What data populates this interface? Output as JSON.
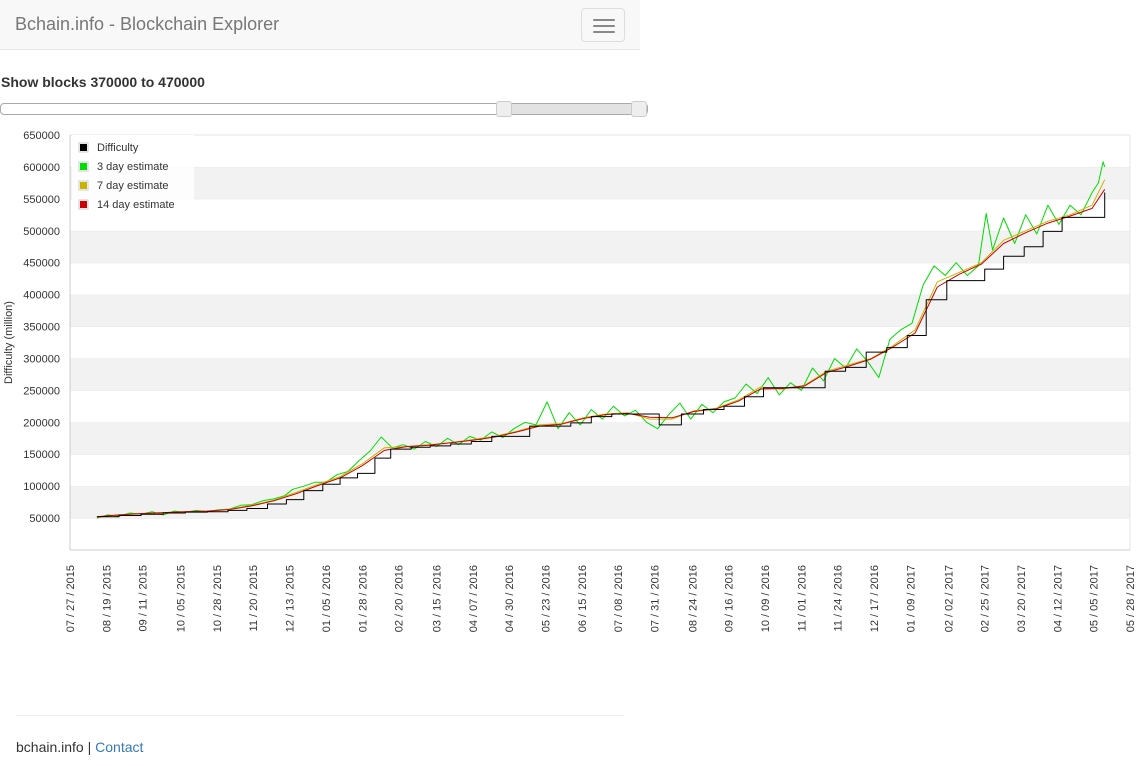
{
  "navbar": {
    "brand": "Bchain.info - Blockchain Explorer",
    "menu_icon": "hamburger-menu-icon"
  },
  "range_title": "Show blocks 370000 to 470000",
  "slider": {
    "min": 0,
    "max": 470000,
    "low": 370000,
    "high": 470000
  },
  "footer": {
    "site": "bchain.info",
    "separator": "|",
    "contact": "Contact"
  },
  "chart_data": {
    "type": "line",
    "title": "",
    "xlabel": "",
    "ylabel": "Difficulty (million)",
    "ylim": [
      0,
      650000
    ],
    "xlim": [
      "07/27/2015",
      "05/28/2017"
    ],
    "grid": "horizontal alternating bands",
    "legend_position": "top-left",
    "y_ticks": [
      50000,
      100000,
      150000,
      200000,
      250000,
      300000,
      350000,
      400000,
      450000,
      500000,
      550000,
      600000,
      650000
    ],
    "x_ticks": [
      "07 / 27 / 2015",
      "08 / 19 / 2015",
      "09 / 11 / 2015",
      "10 / 05 / 2015",
      "10 / 28 / 2015",
      "11 / 20 / 2015",
      "12 / 13 / 2015",
      "01 / 05 / 2016",
      "01 / 28 / 2016",
      "02 / 20 / 2016",
      "03 / 15 / 2016",
      "04 / 07 / 2016",
      "04 / 30 / 2016",
      "05 / 23 / 2016",
      "06 / 15 / 2016",
      "07 / 08 / 2016",
      "07 / 31 / 2016",
      "08 / 24 / 2016",
      "09 / 16 / 2016",
      "10 / 09 / 2016",
      "11 / 01 / 2016",
      "11 / 24 / 2016",
      "12 / 17 / 2016",
      "01 / 09 / 2017",
      "02 / 02 / 2017",
      "02 / 25 / 2017",
      "03 / 20 / 2017",
      "04 / 12 / 2017",
      "05 / 05 / 2017",
      "05 / 28 / 2017"
    ],
    "series": [
      {
        "name": "Difficulty",
        "color": "#000000",
        "step": true,
        "points": [
          [
            "08/13/2015",
            52000
          ],
          [
            "08/27/2015",
            54000
          ],
          [
            "09/10/2015",
            56000
          ],
          [
            "09/24/2015",
            58000
          ],
          [
            "10/08/2015",
            59300
          ],
          [
            "10/22/2015",
            60000
          ],
          [
            "11/04/2015",
            62000
          ],
          [
            "11/16/2015",
            65000
          ],
          [
            "11/29/2015",
            72000
          ],
          [
            "12/11/2015",
            79000
          ],
          [
            "12/22/2015",
            93000
          ],
          [
            "01/03/2016",
            103000
          ],
          [
            "01/14/2016",
            113000
          ],
          [
            "01/25/2016",
            120000
          ],
          [
            "02/05/2016",
            144000
          ],
          [
            "02/15/2016",
            158000
          ],
          [
            "02/28/2016",
            161000
          ],
          [
            "03/11/2016",
            163000
          ],
          [
            "03/24/2016",
            166000
          ],
          [
            "04/06/2016",
            170000
          ],
          [
            "04/19/2016",
            178000
          ],
          [
            "05/01/2016",
            178000
          ],
          [
            "05/13/2016",
            194000
          ],
          [
            "05/26/2016",
            194000
          ],
          [
            "06/08/2016",
            199000
          ],
          [
            "06/21/2016",
            209000
          ],
          [
            "07/04/2016",
            213000
          ],
          [
            "07/20/2016",
            213000
          ],
          [
            "08/03/2016",
            196000
          ],
          [
            "08/17/2016",
            213000
          ],
          [
            "08/31/2016",
            220000
          ],
          [
            "09/13/2016",
            225000
          ],
          [
            "09/26/2016",
            240000
          ],
          [
            "10/08/2016",
            254000
          ],
          [
            "10/21/2016",
            254000
          ],
          [
            "11/03/2016",
            254000
          ],
          [
            "11/16/2016",
            280000
          ],
          [
            "11/29/2016",
            286000
          ],
          [
            "12/12/2016",
            310000
          ],
          [
            "12/25/2016",
            317000
          ],
          [
            "01/07/2017",
            336000
          ],
          [
            "01/19/2017",
            392000
          ],
          [
            "02/01/2017",
            422000
          ],
          [
            "02/13/2017",
            422000
          ],
          [
            "02/25/2017",
            440000
          ],
          [
            "03/09/2017",
            460000
          ],
          [
            "03/22/2017",
            475000
          ],
          [
            "04/03/2017",
            499000
          ],
          [
            "04/15/2017",
            521000
          ],
          [
            "04/28/2017",
            521000
          ],
          [
            "05/09/2017",
            521000
          ],
          [
            "05/12/2017",
            560000
          ]
        ]
      },
      {
        "name": "3 day estimate",
        "color": "#00dd00",
        "points": [
          [
            "08/13/2015",
            50000
          ],
          [
            "08/20/2015",
            55000
          ],
          [
            "08/27/2015",
            53000
          ],
          [
            "09/03/2015",
            58000
          ],
          [
            "09/10/2015",
            56000
          ],
          [
            "09/17/2015",
            60000
          ],
          [
            "09/24/2015",
            55000
          ],
          [
            "10/01/2015",
            61000
          ],
          [
            "10/08/2015",
            59000
          ],
          [
            "10/15/2015",
            62000
          ],
          [
            "10/22/2015",
            60000
          ],
          [
            "10/29/2015",
            63000
          ],
          [
            "11/05/2015",
            64000
          ],
          [
            "11/12/2015",
            70000
          ],
          [
            "11/19/2015",
            71000
          ],
          [
            "11/26/2015",
            77000
          ],
          [
            "12/03/2015",
            80000
          ],
          [
            "12/10/2015",
            85000
          ],
          [
            "12/15/2015",
            95000
          ],
          [
            "12/22/2015",
            100000
          ],
          [
            "12/29/2015",
            106000
          ],
          [
            "01/05/2016",
            106000
          ],
          [
            "01/12/2016",
            118000
          ],
          [
            "01/19/2016",
            123000
          ],
          [
            "01/26/2016",
            140000
          ],
          [
            "02/02/2016",
            155000
          ],
          [
            "02/09/2016",
            177000
          ],
          [
            "02/16/2016",
            160000
          ],
          [
            "02/23/2016",
            165000
          ],
          [
            "03/01/2016",
            158000
          ],
          [
            "03/08/2016",
            170000
          ],
          [
            "03/15/2016",
            162000
          ],
          [
            "03/22/2016",
            175000
          ],
          [
            "03/29/2016",
            165000
          ],
          [
            "04/05/2016",
            178000
          ],
          [
            "04/12/2016",
            172000
          ],
          [
            "04/19/2016",
            185000
          ],
          [
            "04/26/2016",
            176000
          ],
          [
            "05/03/2016",
            190000
          ],
          [
            "05/10/2016",
            200000
          ],
          [
            "05/17/2016",
            196000
          ],
          [
            "05/24/2016",
            232000
          ],
          [
            "05/31/2016",
            190000
          ],
          [
            "06/07/2016",
            215000
          ],
          [
            "06/14/2016",
            196000
          ],
          [
            "06/21/2016",
            220000
          ],
          [
            "06/28/2016",
            205000
          ],
          [
            "07/05/2016",
            225000
          ],
          [
            "07/12/2016",
            210000
          ],
          [
            "07/19/2016",
            219000
          ],
          [
            "07/26/2016",
            200000
          ],
          [
            "08/02/2016",
            190000
          ],
          [
            "08/09/2016",
            212000
          ],
          [
            "08/16/2016",
            230000
          ],
          [
            "08/23/2016",
            205000
          ],
          [
            "08/30/2016",
            228000
          ],
          [
            "09/06/2016",
            215000
          ],
          [
            "09/13/2016",
            232000
          ],
          [
            "09/20/2016",
            238000
          ],
          [
            "09/27/2016",
            260000
          ],
          [
            "10/04/2016",
            245000
          ],
          [
            "10/11/2016",
            270000
          ],
          [
            "10/18/2016",
            243000
          ],
          [
            "10/25/2016",
            262000
          ],
          [
            "11/01/2016",
            250000
          ],
          [
            "11/08/2016",
            285000
          ],
          [
            "11/15/2016",
            265000
          ],
          [
            "11/22/2016",
            300000
          ],
          [
            "11/29/2016",
            285000
          ],
          [
            "12/06/2016",
            315000
          ],
          [
            "12/13/2016",
            295000
          ],
          [
            "12/20/2016",
            270000
          ],
          [
            "12/27/2016",
            330000
          ],
          [
            "01/03/2017",
            345000
          ],
          [
            "01/10/2017",
            355000
          ],
          [
            "01/17/2017",
            415000
          ],
          [
            "01/24/2017",
            445000
          ],
          [
            "01/31/2017",
            430000
          ],
          [
            "02/07/2017",
            450000
          ],
          [
            "02/14/2017",
            430000
          ],
          [
            "02/21/2017",
            445000
          ],
          [
            "02/26/2017",
            527000
          ],
          [
            "03/02/2017",
            470000
          ],
          [
            "03/09/2017",
            520000
          ],
          [
            "03/16/2017",
            480000
          ],
          [
            "03/23/2017",
            525000
          ],
          [
            "03/30/2017",
            495000
          ],
          [
            "04/06/2017",
            540000
          ],
          [
            "04/13/2017",
            510000
          ],
          [
            "04/20/2017",
            540000
          ],
          [
            "04/27/2017",
            525000
          ],
          [
            "05/04/2017",
            560000
          ],
          [
            "05/08/2017",
            575000
          ],
          [
            "05/11/2017",
            608000
          ],
          [
            "05/12/2017",
            600000
          ]
        ]
      },
      {
        "name": "7 day estimate",
        "color": "#c8b400",
        "points": [
          [
            "08/13/2015",
            51000
          ],
          [
            "08/27/2015",
            55000
          ],
          [
            "09/10/2015",
            57000
          ],
          [
            "09/24/2015",
            58000
          ],
          [
            "10/08/2015",
            60000
          ],
          [
            "10/22/2015",
            61000
          ],
          [
            "11/05/2015",
            64000
          ],
          [
            "11/19/2015",
            70000
          ],
          [
            "12/03/2015",
            78000
          ],
          [
            "12/17/2015",
            90000
          ],
          [
            "12/31/2015",
            103000
          ],
          [
            "01/14/2016",
            115000
          ],
          [
            "01/28/2016",
            135000
          ],
          [
            "02/11/2016",
            160000
          ],
          [
            "02/25/2016",
            162000
          ],
          [
            "03/10/2016",
            165000
          ],
          [
            "03/24/2016",
            168000
          ],
          [
            "04/07/2016",
            173000
          ],
          [
            "04/21/2016",
            178000
          ],
          [
            "05/05/2016",
            186000
          ],
          [
            "05/19/2016",
            196000
          ],
          [
            "06/02/2016",
            198000
          ],
          [
            "06/16/2016",
            207000
          ],
          [
            "06/30/2016",
            213000
          ],
          [
            "07/14/2016",
            215000
          ],
          [
            "07/28/2016",
            205000
          ],
          [
            "08/11/2016",
            205000
          ],
          [
            "08/25/2016",
            218000
          ],
          [
            "09/08/2016",
            222000
          ],
          [
            "09/22/2016",
            235000
          ],
          [
            "10/06/2016",
            255000
          ],
          [
            "10/20/2016",
            252000
          ],
          [
            "11/03/2016",
            258000
          ],
          [
            "11/17/2016",
            280000
          ],
          [
            "12/01/2016",
            290000
          ],
          [
            "12/15/2016",
            300000
          ],
          [
            "12/29/2016",
            320000
          ],
          [
            "01/12/2017",
            345000
          ],
          [
            "01/26/2017",
            420000
          ],
          [
            "02/09/2017",
            435000
          ],
          [
            "02/23/2017",
            450000
          ],
          [
            "03/09/2017",
            485000
          ],
          [
            "03/23/2017",
            500000
          ],
          [
            "04/06/2017",
            515000
          ],
          [
            "04/20/2017",
            525000
          ],
          [
            "05/04/2017",
            540000
          ],
          [
            "05/12/2017",
            580000
          ]
        ]
      },
      {
        "name": "14 day estimate",
        "color": "#cc0000",
        "points": [
          [
            "08/13/2015",
            52000
          ],
          [
            "08/27/2015",
            55000
          ],
          [
            "09/10/2015",
            57000
          ],
          [
            "09/24/2015",
            58500
          ],
          [
            "10/08/2015",
            60000
          ],
          [
            "10/22/2015",
            61000
          ],
          [
            "11/05/2015",
            63500
          ],
          [
            "11/19/2015",
            69000
          ],
          [
            "12/03/2015",
            77000
          ],
          [
            "12/17/2015",
            88000
          ],
          [
            "12/31/2015",
            101000
          ],
          [
            "01/14/2016",
            113000
          ],
          [
            "01/28/2016",
            132000
          ],
          [
            "02/11/2016",
            156000
          ],
          [
            "02/25/2016",
            162000
          ],
          [
            "03/10/2016",
            164000
          ],
          [
            "03/24/2016",
            168000
          ],
          [
            "04/07/2016",
            172000
          ],
          [
            "04/21/2016",
            177000
          ],
          [
            "05/05/2016",
            185000
          ],
          [
            "05/19/2016",
            194000
          ],
          [
            "06/02/2016",
            197000
          ],
          [
            "06/16/2016",
            206000
          ],
          [
            "06/30/2016",
            212000
          ],
          [
            "07/14/2016",
            214000
          ],
          [
            "07/28/2016",
            208000
          ],
          [
            "08/11/2016",
            207000
          ],
          [
            "08/25/2016",
            217000
          ],
          [
            "09/08/2016",
            221000
          ],
          [
            "09/22/2016",
            233000
          ],
          [
            "10/06/2016",
            252000
          ],
          [
            "10/20/2016",
            253000
          ],
          [
            "11/03/2016",
            257000
          ],
          [
            "11/17/2016",
            278000
          ],
          [
            "12/01/2016",
            288000
          ],
          [
            "12/15/2016",
            299000
          ],
          [
            "12/29/2016",
            318000
          ],
          [
            "01/12/2017",
            340000
          ],
          [
            "01/26/2017",
            412000
          ],
          [
            "02/09/2017",
            432000
          ],
          [
            "02/23/2017",
            448000
          ],
          [
            "03/09/2017",
            480000
          ],
          [
            "03/23/2017",
            497000
          ],
          [
            "04/06/2017",
            512000
          ],
          [
            "04/20/2017",
            523000
          ],
          [
            "05/04/2017",
            535000
          ],
          [
            "05/12/2017",
            565000
          ]
        ]
      }
    ]
  }
}
